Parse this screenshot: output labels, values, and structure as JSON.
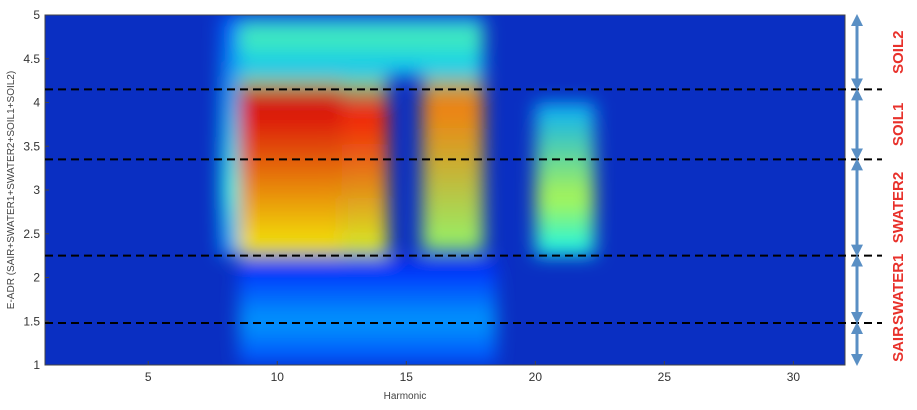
{
  "chart_data": {
    "type": "heatmap",
    "title": "",
    "xlabel": "Harmonic",
    "ylabel": "E-ADR (SAIR+SWATER1+SWATER2+SOIL1+SOIL2)",
    "xlim": [
      1,
      32
    ],
    "ylim": [
      1,
      5
    ],
    "x_ticks": [
      "5",
      "10",
      "15",
      "20",
      "25",
      "30"
    ],
    "y_ticks": [
      "1",
      "1.5",
      "2",
      "2.5",
      "3",
      "3.5",
      "4",
      "4.5",
      "5"
    ],
    "colormap": "jet",
    "value_range": [
      0,
      1
    ],
    "grid": false,
    "boundaries": [
      1.48,
      2.25,
      3.35,
      4.15
    ],
    "regions": [
      {
        "label": "SAIR",
        "from": 1.0,
        "to": 1.48
      },
      {
        "label": "SWATER1",
        "from": 1.48,
        "to": 2.25
      },
      {
        "label": "SWATER2",
        "from": 2.25,
        "to": 3.35
      },
      {
        "label": "SOIL1",
        "from": 3.35,
        "to": 4.15
      },
      {
        "label": "SOIL2",
        "from": 4.15,
        "to": 5.0
      }
    ],
    "hotspots": [
      {
        "x_range": [
          8.5,
          12.5
        ],
        "y_range": [
          2.25,
          4.3
        ],
        "intensity": 0.9,
        "peak_y": 4.0
      },
      {
        "x_range": [
          12.5,
          14.3
        ],
        "y_range": [
          2.25,
          4.3
        ],
        "intensity": 0.85,
        "peak_y": 3.9
      },
      {
        "x_range": [
          15.6,
          18.0
        ],
        "y_range": [
          2.3,
          4.5
        ],
        "intensity": 0.75,
        "peak_y": 4.0
      },
      {
        "x_range": [
          20.0,
          22.3
        ],
        "y_range": [
          2.25,
          4.0
        ],
        "intensity": 0.55,
        "peak_y": 2.9
      },
      {
        "x_range": [
          7.8,
          8.5
        ],
        "y_range": [
          2.25,
          5.0
        ],
        "intensity": 0.4,
        "peak_y": 3.0
      },
      {
        "x_range": [
          8.5,
          18.0
        ],
        "y_range": [
          4.3,
          5.0
        ],
        "intensity": 0.45,
        "peak_y": 4.8
      },
      {
        "x_range": [
          8.5,
          18.5
        ],
        "y_range": [
          1.0,
          2.2
        ],
        "intensity": 0.28,
        "peak_y": 1.5
      }
    ],
    "region_label_colors": {
      "text": "#e8312b",
      "arrow": "#5a8fc4"
    }
  }
}
